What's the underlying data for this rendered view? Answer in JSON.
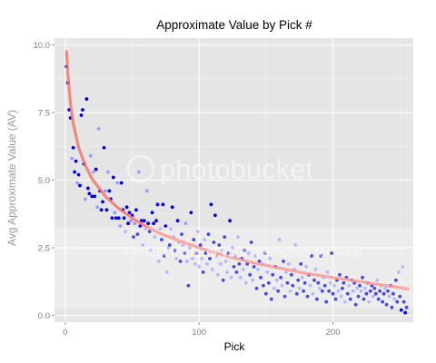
{
  "chart_data": {
    "type": "scatter",
    "title": "Approximate Value by Pick #",
    "xlabel": "Pick",
    "ylabel": "Avg Approximate Value (AV)",
    "xlim": [
      -8,
      260
    ],
    "ylim": [
      -0.25,
      10.25
    ],
    "x_ticks": [
      0,
      100,
      200
    ],
    "y_ticks": [
      0.0,
      2.5,
      5.0,
      7.5,
      10.0
    ],
    "y_tick_labels": [
      "0.0",
      "2.5",
      "5.0",
      "7.5",
      "10.0"
    ],
    "grid": true,
    "legend": "none",
    "colors": {
      "panel": "#e5e5e5",
      "grid": "#ffffff",
      "point_dark": "#0000ee",
      "point_light": "#9b9bff",
      "trend": "#f8766d"
    },
    "trend_curve": [
      [
        1,
        9.75
      ],
      [
        2,
        8.9
      ],
      [
        4,
        7.8
      ],
      [
        6,
        7.1
      ],
      [
        10,
        6.2
      ],
      [
        15,
        5.55
      ],
      [
        20,
        5.05
      ],
      [
        30,
        4.4
      ],
      [
        40,
        3.95
      ],
      [
        50,
        3.6
      ],
      [
        60,
        3.3
      ],
      [
        70,
        3.05
      ],
      [
        80,
        2.85
      ],
      [
        100,
        2.5
      ],
      [
        120,
        2.2
      ],
      [
        140,
        1.95
      ],
      [
        160,
        1.75
      ],
      [
        180,
        1.55
      ],
      [
        200,
        1.4
      ],
      [
        220,
        1.25
      ],
      [
        240,
        1.1
      ],
      [
        256,
        0.98
      ]
    ],
    "points": [
      {
        "x": 1,
        "y": 9.2,
        "g": "d"
      },
      {
        "x": 2,
        "y": 8.6,
        "g": "d"
      },
      {
        "x": 3,
        "y": 7.6,
        "g": "d"
      },
      {
        "x": 4,
        "y": 7.3,
        "g": "d"
      },
      {
        "x": 5,
        "y": 5.8,
        "g": "l"
      },
      {
        "x": 6,
        "y": 6.2,
        "g": "d"
      },
      {
        "x": 7,
        "y": 5.3,
        "g": "d"
      },
      {
        "x": 8,
        "y": 5.7,
        "g": "d"
      },
      {
        "x": 9,
        "y": 4.9,
        "g": "l"
      },
      {
        "x": 10,
        "y": 5.2,
        "g": "d"
      },
      {
        "x": 11,
        "y": 4.8,
        "g": "d"
      },
      {
        "x": 12,
        "y": 7.4,
        "g": "d"
      },
      {
        "x": 13,
        "y": 7.6,
        "g": "d"
      },
      {
        "x": 14,
        "y": 5.6,
        "g": "d"
      },
      {
        "x": 15,
        "y": 4.3,
        "g": "l"
      },
      {
        "x": 16,
        "y": 8.0,
        "g": "d"
      },
      {
        "x": 17,
        "y": 4.7,
        "g": "d"
      },
      {
        "x": 18,
        "y": 4.5,
        "g": "d"
      },
      {
        "x": 19,
        "y": 5.9,
        "g": "l"
      },
      {
        "x": 20,
        "y": 4.4,
        "g": "d"
      },
      {
        "x": 21,
        "y": 5.3,
        "g": "l"
      },
      {
        "x": 22,
        "y": 4.4,
        "g": "d"
      },
      {
        "x": 23,
        "y": 5.4,
        "g": "d"
      },
      {
        "x": 24,
        "y": 4.0,
        "g": "l"
      },
      {
        "x": 25,
        "y": 6.9,
        "g": "l"
      },
      {
        "x": 26,
        "y": 4.6,
        "g": "d"
      },
      {
        "x": 27,
        "y": 3.9,
        "g": "d"
      },
      {
        "x": 28,
        "y": 4.2,
        "g": "d"
      },
      {
        "x": 29,
        "y": 6.2,
        "g": "d"
      },
      {
        "x": 30,
        "y": 4.6,
        "g": "l"
      },
      {
        "x": 31,
        "y": 3.9,
        "g": "d"
      },
      {
        "x": 32,
        "y": 5.3,
        "g": "l"
      },
      {
        "x": 33,
        "y": 4.6,
        "g": "d"
      },
      {
        "x": 34,
        "y": 4.3,
        "g": "d"
      },
      {
        "x": 35,
        "y": 3.6,
        "g": "d"
      },
      {
        "x": 36,
        "y": 5.1,
        "g": "d"
      },
      {
        "x": 37,
        "y": 3.8,
        "g": "l"
      },
      {
        "x": 38,
        "y": 3.6,
        "g": "d"
      },
      {
        "x": 39,
        "y": 4.9,
        "g": "l"
      },
      {
        "x": 40,
        "y": 3.6,
        "g": "d"
      },
      {
        "x": 41,
        "y": 3.3,
        "g": "l"
      },
      {
        "x": 42,
        "y": 4.9,
        "g": "d"
      },
      {
        "x": 43,
        "y": 3.9,
        "g": "d"
      },
      {
        "x": 44,
        "y": 3.6,
        "g": "d"
      },
      {
        "x": 45,
        "y": 3.1,
        "g": "l"
      },
      {
        "x": 46,
        "y": 4.0,
        "g": "d"
      },
      {
        "x": 47,
        "y": 3.4,
        "g": "d"
      },
      {
        "x": 48,
        "y": 3.8,
        "g": "d"
      },
      {
        "x": 49,
        "y": 3.5,
        "g": "l"
      },
      {
        "x": 50,
        "y": 3.7,
        "g": "d"
      },
      {
        "x": 51,
        "y": 2.9,
        "g": "d"
      },
      {
        "x": 52,
        "y": 3.4,
        "g": "l"
      },
      {
        "x": 53,
        "y": 3.9,
        "g": "d"
      },
      {
        "x": 54,
        "y": 3.0,
        "g": "d"
      },
      {
        "x": 55,
        "y": 5.3,
        "g": "l"
      },
      {
        "x": 56,
        "y": 3.3,
        "g": "d"
      },
      {
        "x": 57,
        "y": 3.5,
        "g": "d"
      },
      {
        "x": 58,
        "y": 2.6,
        "g": "l"
      },
      {
        "x": 59,
        "y": 3.5,
        "g": "d"
      },
      {
        "x": 60,
        "y": 3.2,
        "g": "l"
      },
      {
        "x": 61,
        "y": 4.6,
        "g": "l"
      },
      {
        "x": 62,
        "y": 3.4,
        "g": "d"
      },
      {
        "x": 63,
        "y": 3.1,
        "g": "d"
      },
      {
        "x": 64,
        "y": 2.4,
        "g": "l"
      },
      {
        "x": 65,
        "y": 3.8,
        "g": "d"
      },
      {
        "x": 66,
        "y": 3.4,
        "g": "d"
      },
      {
        "x": 67,
        "y": 2.9,
        "g": "l"
      },
      {
        "x": 68,
        "y": 3.5,
        "g": "d"
      },
      {
        "x": 69,
        "y": 4.1,
        "g": "d"
      },
      {
        "x": 70,
        "y": 2.0,
        "g": "l"
      },
      {
        "x": 71,
        "y": 3.2,
        "g": "l"
      },
      {
        "x": 72,
        "y": 2.8,
        "g": "d"
      },
      {
        "x": 73,
        "y": 4.1,
        "g": "d"
      },
      {
        "x": 74,
        "y": 2.2,
        "g": "d"
      },
      {
        "x": 75,
        "y": 3.3,
        "g": "d"
      },
      {
        "x": 76,
        "y": 1.6,
        "g": "l"
      },
      {
        "x": 77,
        "y": 2.5,
        "g": "l"
      },
      {
        "x": 78,
        "y": 2.6,
        "g": "d"
      },
      {
        "x": 79,
        "y": 3.2,
        "g": "l"
      },
      {
        "x": 80,
        "y": 4.0,
        "g": "d"
      },
      {
        "x": 81,
        "y": 2.9,
        "g": "l"
      },
      {
        "x": 82,
        "y": 2.4,
        "g": "d"
      },
      {
        "x": 83,
        "y": 2.1,
        "g": "l"
      },
      {
        "x": 84,
        "y": 3.5,
        "g": "d"
      },
      {
        "x": 85,
        "y": 2.7,
        "g": "l"
      },
      {
        "x": 86,
        "y": 2.0,
        "g": "d"
      },
      {
        "x": 87,
        "y": 3.0,
        "g": "d"
      },
      {
        "x": 88,
        "y": 2.6,
        "g": "l"
      },
      {
        "x": 89,
        "y": 2.3,
        "g": "d"
      },
      {
        "x": 90,
        "y": 3.4,
        "g": "l"
      },
      {
        "x": 91,
        "y": 2.0,
        "g": "l"
      },
      {
        "x": 92,
        "y": 1.1,
        "g": "d"
      },
      {
        "x": 93,
        "y": 2.5,
        "g": "l"
      },
      {
        "x": 94,
        "y": 3.8,
        "g": "d"
      },
      {
        "x": 95,
        "y": 2.1,
        "g": "l"
      },
      {
        "x": 96,
        "y": 2.8,
        "g": "d"
      },
      {
        "x": 97,
        "y": 1.9,
        "g": "l"
      },
      {
        "x": 98,
        "y": 2.3,
        "g": "d"
      },
      {
        "x": 99,
        "y": 3.1,
        "g": "l"
      },
      {
        "x": 100,
        "y": 1.8,
        "g": "l"
      },
      {
        "x": 101,
        "y": 2.6,
        "g": "d"
      },
      {
        "x": 102,
        "y": 2.1,
        "g": "l"
      },
      {
        "x": 103,
        "y": 1.6,
        "g": "d"
      },
      {
        "x": 104,
        "y": 2.8,
        "g": "l"
      },
      {
        "x": 105,
        "y": 2.3,
        "g": "d"
      },
      {
        "x": 106,
        "y": 1.9,
        "g": "l"
      },
      {
        "x": 107,
        "y": 3.0,
        "g": "d"
      },
      {
        "x": 108,
        "y": 2.1,
        "g": "d"
      },
      {
        "x": 109,
        "y": 4.1,
        "g": "d"
      },
      {
        "x": 110,
        "y": 1.7,
        "g": "l"
      },
      {
        "x": 111,
        "y": 2.7,
        "g": "d"
      },
      {
        "x": 112,
        "y": 3.7,
        "g": "d"
      },
      {
        "x": 113,
        "y": 2.2,
        "g": "l"
      },
      {
        "x": 114,
        "y": 1.5,
        "g": "l"
      },
      {
        "x": 115,
        "y": 2.6,
        "g": "d"
      },
      {
        "x": 116,
        "y": 1.9,
        "g": "l"
      },
      {
        "x": 117,
        "y": 2.4,
        "g": "l"
      },
      {
        "x": 118,
        "y": 1.3,
        "g": "d"
      },
      {
        "x": 119,
        "y": 2.9,
        "g": "d"
      },
      {
        "x": 120,
        "y": 2.0,
        "g": "l"
      },
      {
        "x": 121,
        "y": 1.6,
        "g": "l"
      },
      {
        "x": 122,
        "y": 2.3,
        "g": "d"
      },
      {
        "x": 123,
        "y": 3.5,
        "g": "d"
      },
      {
        "x": 124,
        "y": 1.4,
        "g": "l"
      },
      {
        "x": 125,
        "y": 2.5,
        "g": "l"
      },
      {
        "x": 126,
        "y": 1.8,
        "g": "d"
      },
      {
        "x": 127,
        "y": 2.2,
        "g": "l"
      },
      {
        "x": 128,
        "y": 1.6,
        "g": "d"
      },
      {
        "x": 129,
        "y": 2.9,
        "g": "l"
      },
      {
        "x": 130,
        "y": 1.9,
        "g": "d"
      },
      {
        "x": 131,
        "y": 1.4,
        "g": "l"
      },
      {
        "x": 132,
        "y": 2.1,
        "g": "d"
      },
      {
        "x": 133,
        "y": 1.7,
        "g": "l"
      },
      {
        "x": 134,
        "y": 2.4,
        "g": "d"
      },
      {
        "x": 135,
        "y": 1.2,
        "g": "l"
      },
      {
        "x": 136,
        "y": 1.9,
        "g": "d"
      },
      {
        "x": 137,
        "y": 2.3,
        "g": "l"
      },
      {
        "x": 138,
        "y": 1.5,
        "g": "d"
      },
      {
        "x": 139,
        "y": 2.7,
        "g": "d"
      },
      {
        "x": 140,
        "y": 1.3,
        "g": "l"
      },
      {
        "x": 141,
        "y": 1.8,
        "g": "d"
      },
      {
        "x": 142,
        "y": 2.2,
        "g": "l"
      },
      {
        "x": 143,
        "y": 1.0,
        "g": "d"
      },
      {
        "x": 144,
        "y": 1.7,
        "g": "l"
      },
      {
        "x": 145,
        "y": 2.0,
        "g": "d"
      },
      {
        "x": 146,
        "y": 1.4,
        "g": "d"
      },
      {
        "x": 147,
        "y": 1.9,
        "g": "l"
      },
      {
        "x": 148,
        "y": 1.1,
        "g": "d"
      },
      {
        "x": 149,
        "y": 2.3,
        "g": "d"
      },
      {
        "x": 150,
        "y": 0.8,
        "g": "d"
      },
      {
        "x": 151,
        "y": 1.6,
        "g": "l"
      },
      {
        "x": 152,
        "y": 1.2,
        "g": "d"
      },
      {
        "x": 153,
        "y": 2.1,
        "g": "l"
      },
      {
        "x": 154,
        "y": 0.6,
        "g": "d"
      },
      {
        "x": 155,
        "y": 1.5,
        "g": "d"
      },
      {
        "x": 156,
        "y": 1.0,
        "g": "l"
      },
      {
        "x": 157,
        "y": 1.8,
        "g": "d"
      },
      {
        "x": 158,
        "y": 1.3,
        "g": "l"
      },
      {
        "x": 159,
        "y": 0.9,
        "g": "d"
      },
      {
        "x": 160,
        "y": 2.8,
        "g": "l"
      },
      {
        "x": 161,
        "y": 1.4,
        "g": "d"
      },
      {
        "x": 162,
        "y": 1.1,
        "g": "l"
      },
      {
        "x": 163,
        "y": 2.0,
        "g": "d"
      },
      {
        "x": 164,
        "y": 0.7,
        "g": "d"
      },
      {
        "x": 165,
        "y": 1.6,
        "g": "l"
      },
      {
        "x": 166,
        "y": 1.2,
        "g": "d"
      },
      {
        "x": 167,
        "y": 1.9,
        "g": "l"
      },
      {
        "x": 168,
        "y": 0.9,
        "g": "l"
      },
      {
        "x": 169,
        "y": 1.5,
        "g": "d"
      },
      {
        "x": 170,
        "y": 1.1,
        "g": "d"
      },
      {
        "x": 171,
        "y": 1.7,
        "g": "l"
      },
      {
        "x": 172,
        "y": 2.6,
        "g": "l"
      },
      {
        "x": 173,
        "y": 0.8,
        "g": "d"
      },
      {
        "x": 174,
        "y": 1.3,
        "g": "d"
      },
      {
        "x": 175,
        "y": 1.0,
        "g": "l"
      },
      {
        "x": 176,
        "y": 1.9,
        "g": "d"
      },
      {
        "x": 177,
        "y": 1.4,
        "g": "l"
      },
      {
        "x": 178,
        "y": 0.9,
        "g": "d"
      },
      {
        "x": 179,
        "y": 1.2,
        "g": "d"
      },
      {
        "x": 180,
        "y": 1.8,
        "g": "l"
      },
      {
        "x": 181,
        "y": 0.7,
        "g": "d"
      },
      {
        "x": 182,
        "y": 1.5,
        "g": "d"
      },
      {
        "x": 183,
        "y": 1.1,
        "g": "l"
      },
      {
        "x": 184,
        "y": 2.2,
        "g": "d"
      },
      {
        "x": 185,
        "y": 0.8,
        "g": "l"
      },
      {
        "x": 186,
        "y": 1.3,
        "g": "d"
      },
      {
        "x": 187,
        "y": 1.7,
        "g": "l"
      },
      {
        "x": 188,
        "y": 0.6,
        "g": "d"
      },
      {
        "x": 189,
        "y": 1.2,
        "g": "d"
      },
      {
        "x": 190,
        "y": 1.0,
        "g": "l"
      },
      {
        "x": 191,
        "y": 2.2,
        "g": "d"
      },
      {
        "x": 192,
        "y": 0.9,
        "g": "d"
      },
      {
        "x": 193,
        "y": 1.4,
        "g": "l"
      },
      {
        "x": 194,
        "y": 1.1,
        "g": "d"
      },
      {
        "x": 195,
        "y": 0.5,
        "g": "d"
      },
      {
        "x": 196,
        "y": 1.6,
        "g": "l"
      },
      {
        "x": 197,
        "y": 0.9,
        "g": "d"
      },
      {
        "x": 198,
        "y": 1.2,
        "g": "l"
      },
      {
        "x": 199,
        "y": 2.3,
        "g": "d"
      },
      {
        "x": 200,
        "y": 0.8,
        "g": "d"
      },
      {
        "x": 201,
        "y": 1.1,
        "g": "l"
      },
      {
        "x": 202,
        "y": 0.6,
        "g": "d"
      },
      {
        "x": 203,
        "y": 1.3,
        "g": "d"
      },
      {
        "x": 204,
        "y": 0.9,
        "g": "l"
      },
      {
        "x": 205,
        "y": 1.5,
        "g": "d"
      },
      {
        "x": 206,
        "y": 0.7,
        "g": "l"
      },
      {
        "x": 207,
        "y": 1.0,
        "g": "d"
      },
      {
        "x": 208,
        "y": 1.2,
        "g": "d"
      },
      {
        "x": 209,
        "y": 0.5,
        "g": "l"
      },
      {
        "x": 210,
        "y": 1.4,
        "g": "d"
      },
      {
        "x": 211,
        "y": 0.8,
        "g": "d"
      },
      {
        "x": 212,
        "y": 1.1,
        "g": "l"
      },
      {
        "x": 213,
        "y": 0.6,
        "g": "d"
      },
      {
        "x": 214,
        "y": 1.3,
        "g": "d"
      },
      {
        "x": 215,
        "y": 0.9,
        "g": "l"
      },
      {
        "x": 216,
        "y": 1.2,
        "g": "d"
      },
      {
        "x": 217,
        "y": 0.4,
        "g": "d"
      },
      {
        "x": 218,
        "y": 1.0,
        "g": "l"
      },
      {
        "x": 219,
        "y": 0.7,
        "g": "d"
      },
      {
        "x": 220,
        "y": 1.1,
        "g": "d"
      },
      {
        "x": 221,
        "y": 0.9,
        "g": "l"
      },
      {
        "x": 222,
        "y": 1.4,
        "g": "d"
      },
      {
        "x": 223,
        "y": 0.6,
        "g": "d"
      },
      {
        "x": 224,
        "y": 1.0,
        "g": "l"
      },
      {
        "x": 225,
        "y": 0.8,
        "g": "d"
      },
      {
        "x": 226,
        "y": 1.2,
        "g": "d"
      },
      {
        "x": 227,
        "y": 0.5,
        "g": "l"
      },
      {
        "x": 228,
        "y": 0.9,
        "g": "d"
      },
      {
        "x": 229,
        "y": 1.1,
        "g": "d"
      },
      {
        "x": 230,
        "y": 0.7,
        "g": "l"
      },
      {
        "x": 231,
        "y": 1.0,
        "g": "d"
      },
      {
        "x": 232,
        "y": 0.8,
        "g": "d"
      },
      {
        "x": 233,
        "y": 1.3,
        "g": "l"
      },
      {
        "x": 234,
        "y": 0.6,
        "g": "d"
      },
      {
        "x": 235,
        "y": 0.9,
        "g": "d"
      },
      {
        "x": 236,
        "y": 1.1,
        "g": "l"
      },
      {
        "x": 237,
        "y": 0.5,
        "g": "d"
      },
      {
        "x": 238,
        "y": 0.8,
        "g": "d"
      },
      {
        "x": 239,
        "y": 1.0,
        "g": "l"
      },
      {
        "x": 240,
        "y": 0.4,
        "g": "d"
      },
      {
        "x": 241,
        "y": 0.9,
        "g": "d"
      },
      {
        "x": 242,
        "y": 0.7,
        "g": "l"
      },
      {
        "x": 243,
        "y": 1.1,
        "g": "d"
      },
      {
        "x": 244,
        "y": 0.3,
        "g": "d"
      },
      {
        "x": 245,
        "y": 0.8,
        "g": "d"
      },
      {
        "x": 246,
        "y": 0.6,
        "g": "l"
      },
      {
        "x": 247,
        "y": 1.3,
        "g": "d"
      },
      {
        "x": 248,
        "y": 0.5,
        "g": "d"
      },
      {
        "x": 249,
        "y": 1.6,
        "g": "l"
      },
      {
        "x": 250,
        "y": 0.7,
        "g": "d"
      },
      {
        "x": 251,
        "y": 0.2,
        "g": "d"
      },
      {
        "x": 252,
        "y": 1.8,
        "g": "l"
      },
      {
        "x": 253,
        "y": 0.5,
        "g": "d"
      },
      {
        "x": 254,
        "y": 0.1,
        "g": "d"
      },
      {
        "x": 255,
        "y": 0.3,
        "g": "d"
      }
    ]
  },
  "watermark": {
    "main": "photobucket",
    "sub": "Protect more of your memories for less!"
  }
}
